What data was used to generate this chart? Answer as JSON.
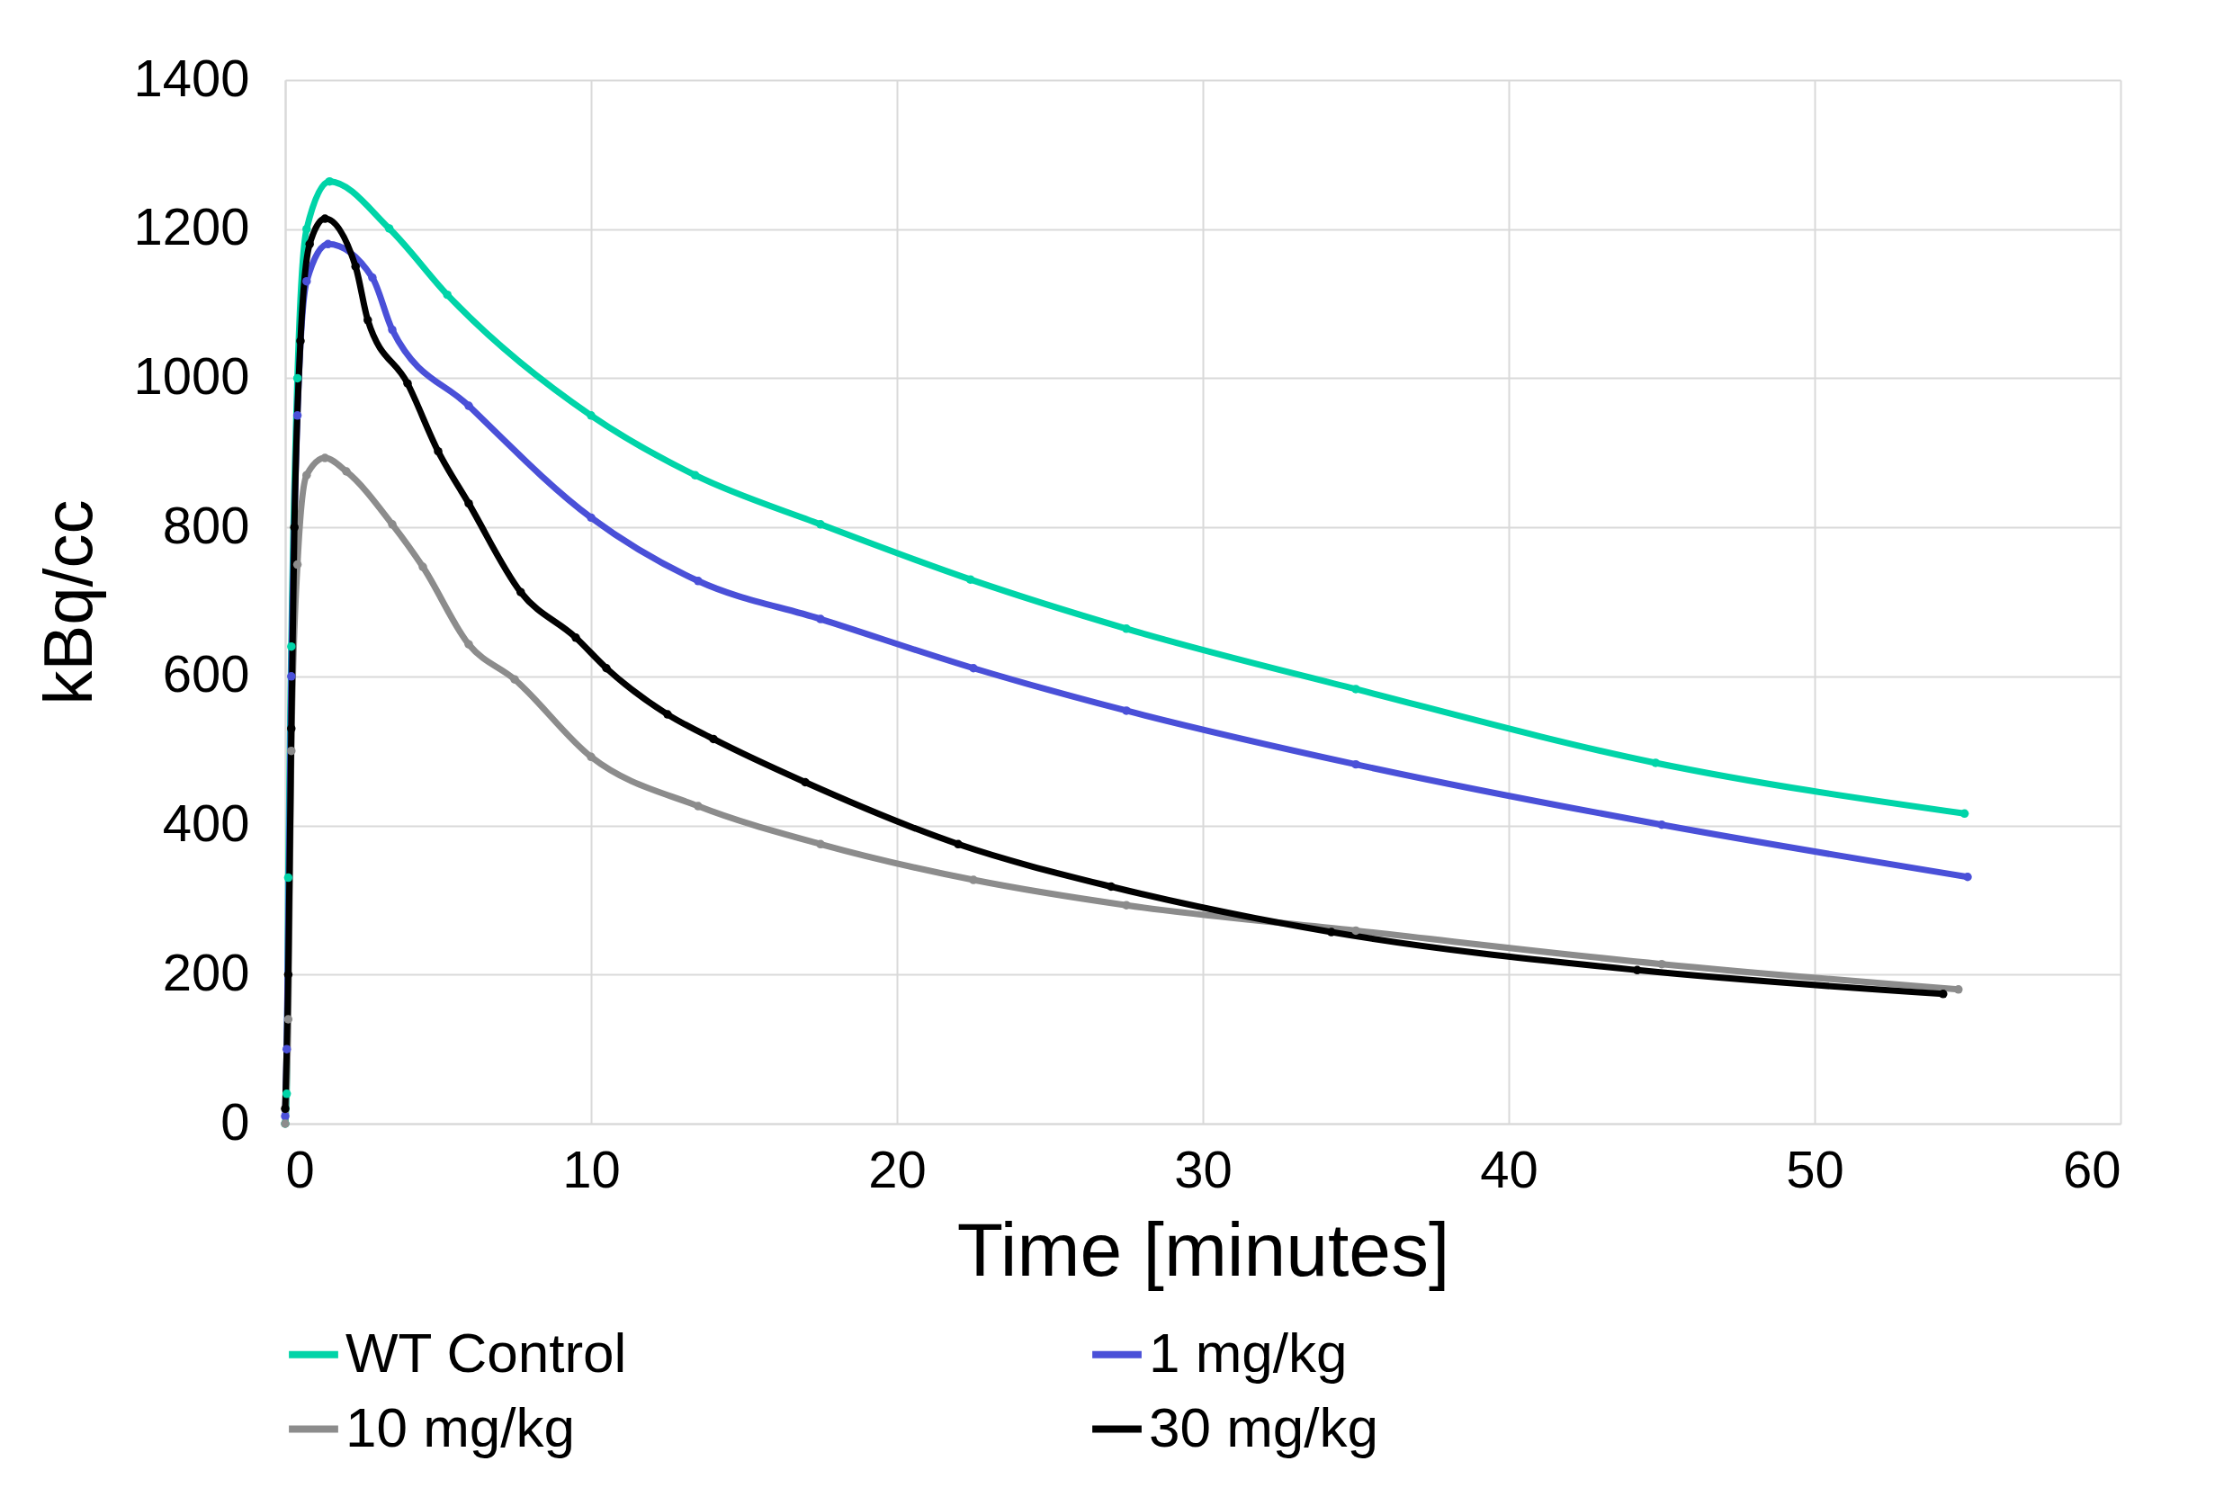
{
  "chart_data": {
    "type": "line",
    "xlabel": "Time [minutes]",
    "ylabel": "kBq/cc",
    "xlim": [
      0,
      60
    ],
    "xticks": [
      0,
      10,
      20,
      30,
      40,
      50,
      60
    ],
    "ylim": [
      0,
      1400
    ],
    "yticks": [
      0,
      200,
      400,
      600,
      800,
      1000,
      1200,
      1400
    ],
    "grid": true,
    "legend": "bottom",
    "marker": "circle",
    "line_style": "solid",
    "series": [
      {
        "name": "WT Control",
        "color": "#00d4a8",
        "x": [
          0,
          0.05,
          0.1,
          0.2,
          0.4,
          0.7,
          1.45,
          3.4,
          5.3,
          10,
          13.4,
          17.5,
          22.4,
          27.5,
          35,
          44.8,
          54.9
        ],
        "values": [
          0,
          40,
          330,
          640,
          1000,
          1200,
          1264,
          1201,
          1112,
          950,
          870,
          804,
          730,
          664,
          583,
          484,
          416
        ]
      },
      {
        "name": "1 mg/kg",
        "color": "#4a50d8",
        "x": [
          0,
          0.05,
          0.2,
          0.4,
          0.7,
          1.4,
          2.85,
          3.5,
          6,
          10,
          13.5,
          17.5,
          22.5,
          27.5,
          35,
          45,
          55
        ],
        "values": [
          10,
          100,
          600,
          950,
          1130,
          1180,
          1135,
          1065,
          963,
          813,
          728,
          677,
          611,
          554,
          482,
          401,
          331
        ]
      },
      {
        "name": "10 mg/kg",
        "color": "#8c8c8c",
        "x": [
          0,
          0.1,
          0.2,
          0.4,
          0.7,
          1.3,
          2,
          3.5,
          4.5,
          6,
          7.5,
          10,
          13.5,
          17.5,
          22.5,
          27.5,
          35,
          45,
          54.7
        ],
        "values": [
          0,
          140,
          500,
          750,
          870,
          893,
          875,
          804,
          747,
          643,
          596,
          492,
          426,
          375,
          327,
          293,
          259,
          214,
          180
        ]
      },
      {
        "name": "30 mg/kg",
        "color": "#000000",
        "x": [
          0,
          0.1,
          0.2,
          0.3,
          0.5,
          0.8,
          1.3,
          2.3,
          2.7,
          4,
          5,
          6,
          7.7,
          9.5,
          10.5,
          12.5,
          14,
          17,
          22,
          27,
          34.2,
          44.2,
          54.2
        ],
        "values": [
          20,
          200,
          530,
          800,
          1050,
          1180,
          1214,
          1150,
          1078,
          993,
          902,
          832,
          713,
          652,
          611,
          549,
          516,
          458,
          375,
          318,
          257,
          206,
          174
        ]
      }
    ]
  }
}
